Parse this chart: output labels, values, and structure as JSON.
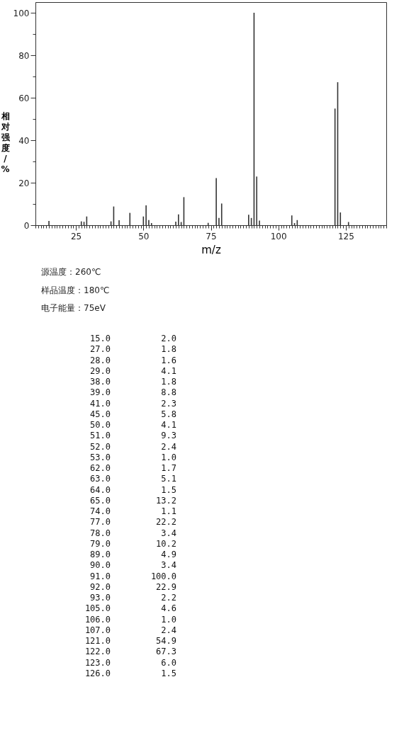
{
  "chart_data": {
    "type": "bar",
    "xlabel": "m/z",
    "ylabel": "相对强度/%",
    "x": [
      15,
      27,
      28,
      29,
      38,
      39,
      41,
      45,
      50,
      51,
      52,
      53,
      62,
      63,
      64,
      65,
      74,
      77,
      78,
      79,
      89,
      90,
      91,
      92,
      93,
      105,
      106,
      107,
      121,
      122,
      123,
      126
    ],
    "series": [
      {
        "color": "#333333",
        "values": [
          2.0,
          1.8,
          1.6,
          4.1,
          1.8,
          8.8,
          2.3,
          5.8,
          4.1,
          9.3,
          2.4,
          1.0,
          1.7,
          5.1,
          1.5,
          13.2,
          1.1,
          22.2,
          3.4,
          10.2,
          4.9,
          3.4,
          100.0,
          22.9,
          2.2,
          4.6,
          1.0,
          2.4,
          54.9,
          67.3,
          6.0,
          1.5
        ]
      }
    ],
    "value_labels": [
      "2.0",
      "1.8",
      "1.6",
      "4.1",
      "1.8",
      "8.8",
      "2.3",
      "5.8",
      "4.1",
      "9.3",
      "2.4",
      "1.0",
      "1.7",
      "5.1",
      "1.5",
      "13.2",
      "1.1",
      "22.2",
      "3.4",
      "10.2",
      "4.9",
      "3.4",
      "100.0",
      "22.9",
      "2.2",
      "4.6",
      "1.0",
      "2.4",
      "54.9",
      "67.3",
      "6.0",
      "1.5"
    ],
    "xlim": [
      10,
      140
    ],
    "ylim": [
      0,
      105
    ],
    "xticks": [
      25,
      50,
      75,
      100,
      125
    ],
    "yticks": [
      0,
      20,
      40,
      60,
      80,
      100
    ],
    "annotations": [
      "源温度：260℃",
      "样品温度：180℃",
      "电子能量：75eV",
      "15.0",
      "27.0",
      "28.0",
      "29.0",
      "38.0",
      "39.0",
      "41.0",
      "45.0",
      "50.0",
      "51.0",
      "52.0",
      "53.0",
      "62.0",
      "63.0",
      "64.0",
      "65.0",
      "74.0",
      "77.0",
      "78.0",
      "79.0",
      "89.0",
      "90.0",
      "91.0",
      "92.0",
      "93.0",
      "105.0",
      "106.0",
      "107.0",
      "121.0",
      "122.0",
      "123.0",
      "126.0"
    ]
  }
}
